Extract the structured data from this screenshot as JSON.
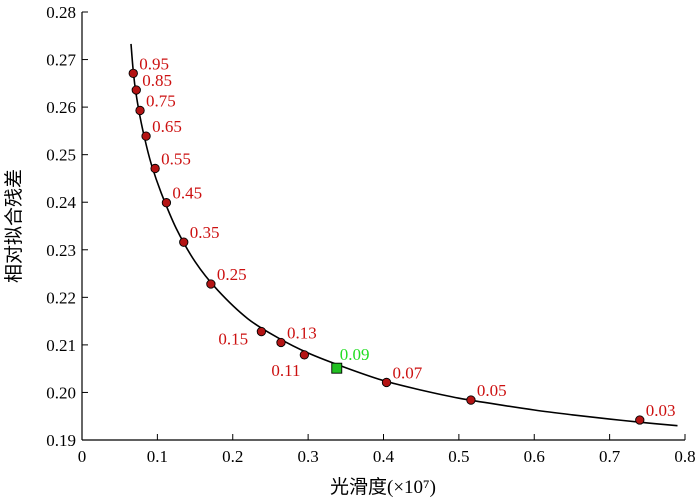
{
  "chart_data": {
    "type": "line",
    "title": "",
    "xlabel": "光滑度(×10⁷)",
    "ylabel": "相对拟合残差",
    "xlim": [
      0,
      0.8
    ],
    "ylim": [
      0.19,
      0.28
    ],
    "xticks": [
      0,
      0.1,
      0.2,
      0.3,
      0.4,
      0.5,
      0.6,
      0.7,
      0.8
    ],
    "xtick_labels": [
      "0",
      "0.1",
      "0.2",
      "0.3",
      "0.4",
      "0.5",
      "0.6",
      "0.7",
      "0.8"
    ],
    "yticks": [
      0.19,
      0.2,
      0.21,
      0.22,
      0.23,
      0.24,
      0.25,
      0.26,
      0.27,
      0.28
    ],
    "ytick_labels": [
      "0.19",
      "0.20",
      "0.21",
      "0.22",
      "0.23",
      "0.24",
      "0.25",
      "0.26",
      "0.27",
      "0.28"
    ],
    "grid": false,
    "curve": {
      "color": "#000000",
      "x": [
        0.065,
        0.068,
        0.072,
        0.077,
        0.083,
        0.092,
        0.105,
        0.125,
        0.15,
        0.18,
        0.22,
        0.26,
        0.3,
        0.35,
        0.4,
        0.45,
        0.5,
        0.55,
        0.6,
        0.65,
        0.7,
        0.75,
        0.79
      ],
      "y": [
        0.2733,
        0.2675,
        0.2625,
        0.258,
        0.2535,
        0.248,
        0.242,
        0.2345,
        0.2275,
        0.2215,
        0.2155,
        0.2115,
        0.2083,
        0.2052,
        0.2025,
        0.2005,
        0.1988,
        0.1975,
        0.1963,
        0.1953,
        0.1944,
        0.1936,
        0.193
      ]
    },
    "points": {
      "marker_color": "#b41414",
      "label_color": "#cc1010",
      "items": [
        {
          "label": "0.95",
          "x": 0.068,
          "y": 0.2671
        },
        {
          "label": "0.85",
          "x": 0.072,
          "y": 0.2636
        },
        {
          "label": "0.75",
          "x": 0.077,
          "y": 0.2593
        },
        {
          "label": "0.65",
          "x": 0.085,
          "y": 0.2539
        },
        {
          "label": "0.55",
          "x": 0.097,
          "y": 0.2471
        },
        {
          "label": "0.45",
          "x": 0.112,
          "y": 0.2399
        },
        {
          "label": "0.35",
          "x": 0.135,
          "y": 0.2316
        },
        {
          "label": "0.25",
          "x": 0.171,
          "y": 0.2228
        },
        {
          "label": "0.15",
          "x": 0.238,
          "y": 0.2128
        },
        {
          "label": "0.13",
          "x": 0.264,
          "y": 0.2105
        },
        {
          "label": "0.11",
          "x": 0.295,
          "y": 0.2079
        },
        {
          "label": "0.07",
          "x": 0.404,
          "y": 0.2021
        },
        {
          "label": "0.05",
          "x": 0.516,
          "y": 0.1984
        },
        {
          "label": "0.03",
          "x": 0.74,
          "y": 0.1942
        }
      ]
    },
    "optimal_point": {
      "label": "0.09",
      "x": 0.338,
      "y": 0.2051,
      "marker_color": "#22c022",
      "label_color": "#22dd22"
    }
  }
}
